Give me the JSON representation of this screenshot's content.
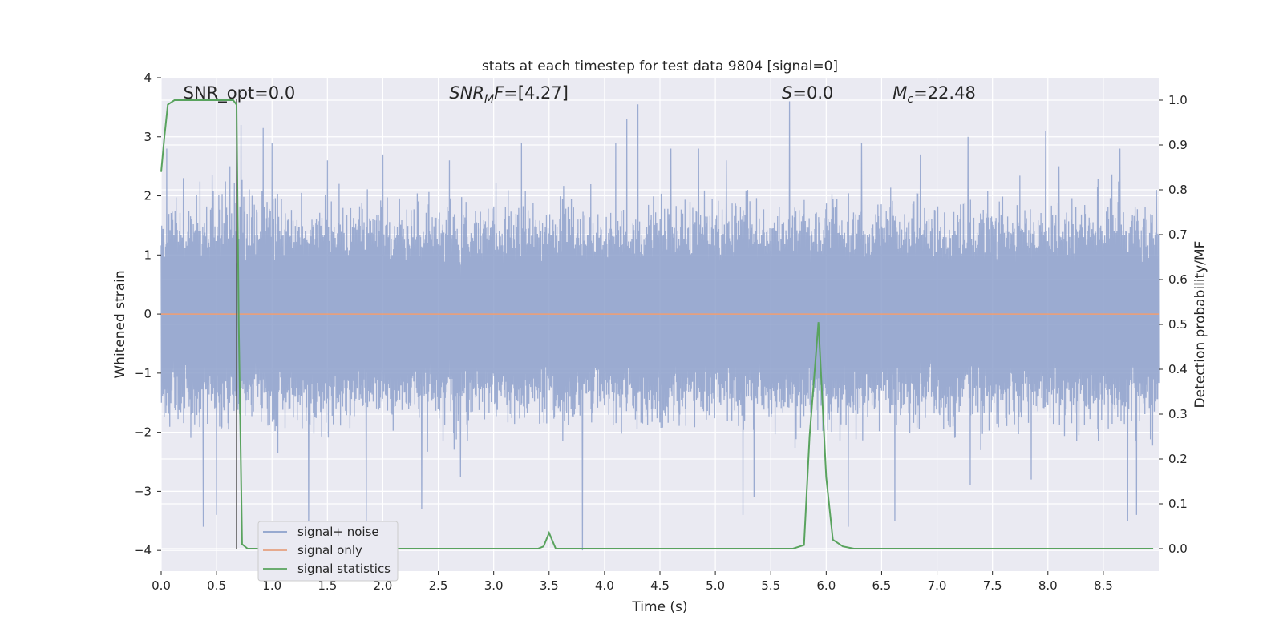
{
  "chart_data": {
    "type": "line",
    "title": "stats at each timestep for test data 9804 [signal=0]",
    "xlabel": "Time (s)",
    "ylabel": "Whitened strain",
    "y2label": "Detection probability/MF",
    "xlim": [
      0.0,
      9.0
    ],
    "ylim": [
      -4.35,
      4.0
    ],
    "y2lim": [
      -0.05,
      1.05
    ],
    "xticks": [
      "0.0",
      "0.5",
      "1.0",
      "1.5",
      "2.0",
      "2.5",
      "3.0",
      "3.5",
      "4.0",
      "4.5",
      "5.0",
      "5.5",
      "6.0",
      "6.5",
      "7.0",
      "7.5",
      "8.0",
      "8.5"
    ],
    "yticks": [
      "4",
      "3",
      "2",
      "1",
      "0",
      "−1",
      "−2",
      "−3",
      "−4"
    ],
    "y2ticks": [
      "1.0",
      "0.9",
      "0.8",
      "0.7",
      "0.6",
      "0.5",
      "0.4",
      "0.3",
      "0.2",
      "0.1",
      "0.0"
    ],
    "grid": true,
    "legend_position": "lower-left",
    "annotations": [
      {
        "text": "SNR_opt=0.0",
        "x": 0.2,
        "y": 3.65
      },
      {
        "text": "SNR_MF=[4.27]",
        "x": 2.6,
        "y": 3.65
      },
      {
        "text": "S=0.0",
        "x": 5.6,
        "y": 3.65
      },
      {
        "text": "M_c=22.48",
        "x": 6.6,
        "y": 3.65
      }
    ],
    "vline_x": 0.68,
    "series": [
      {
        "name": "signal+ noise",
        "color": "#8da0cb",
        "axis": "left",
        "envelope": {
          "typical_max": 1.6,
          "typical_min": -1.6
        },
        "spikes": [
          [
            0.05,
            2.8
          ],
          [
            0.2,
            2.3
          ],
          [
            0.38,
            -3.6
          ],
          [
            0.5,
            -3.4
          ],
          [
            0.62,
            2.5
          ],
          [
            0.72,
            3.2
          ],
          [
            0.92,
            3.15
          ],
          [
            1.0,
            2.9
          ],
          [
            1.33,
            -3.6
          ],
          [
            1.85,
            -3.55
          ],
          [
            1.5,
            2.6
          ],
          [
            2.35,
            -3.3
          ],
          [
            2.0,
            2.7
          ],
          [
            2.7,
            -2.75
          ],
          [
            2.6,
            2.6
          ],
          [
            3.25,
            2.9
          ],
          [
            3.8,
            -4.0
          ],
          [
            4.2,
            3.3
          ],
          [
            4.3,
            3.55
          ],
          [
            4.1,
            2.9
          ],
          [
            4.6,
            2.8
          ],
          [
            4.85,
            2.8
          ],
          [
            5.25,
            -3.4
          ],
          [
            5.35,
            -3.1
          ],
          [
            5.67,
            3.6
          ],
          [
            5.1,
            2.6
          ],
          [
            6.2,
            -3.6
          ],
          [
            6.32,
            2.9
          ],
          [
            6.62,
            -3.5
          ],
          [
            6.85,
            2.7
          ],
          [
            7.28,
            3.0
          ],
          [
            7.3,
            -2.9
          ],
          [
            7.85,
            -2.8
          ],
          [
            7.98,
            3.1
          ],
          [
            8.1,
            2.5
          ],
          [
            8.65,
            2.8
          ],
          [
            8.72,
            -3.5
          ],
          [
            8.8,
            -3.4
          ],
          [
            8.98,
            2.1
          ]
        ]
      },
      {
        "name": "signal only",
        "color": "#e5a07f",
        "axis": "left",
        "x": [
          0.0,
          9.0
        ],
        "y": [
          0.0,
          0.0
        ]
      },
      {
        "name": "signal statistics",
        "color": "#59a35e",
        "axis": "right",
        "x": [
          0.0,
          0.03,
          0.06,
          0.12,
          0.2,
          0.3,
          0.4,
          0.5,
          0.6,
          0.65,
          0.68,
          0.7,
          0.73,
          0.78,
          0.85,
          1.0,
          2.0,
          3.0,
          3.4,
          3.45,
          3.5,
          3.56,
          3.6,
          4.0,
          5.0,
          5.7,
          5.8,
          5.85,
          5.93,
          6.0,
          6.06,
          6.15,
          6.25,
          6.4,
          7.0,
          8.0,
          8.95
        ],
        "y": [
          0.84,
          0.92,
          0.99,
          1.0,
          1.0,
          1.0,
          1.0,
          1.0,
          1.0,
          1.0,
          0.99,
          0.5,
          0.01,
          0.0,
          0.0,
          0.0,
          0.0,
          0.0,
          0.0,
          0.005,
          0.035,
          0.0,
          0.0,
          0.0,
          0.0,
          0.0,
          0.008,
          0.25,
          0.505,
          0.16,
          0.02,
          0.005,
          0.0,
          0.0,
          0.0,
          0.0,
          0.0
        ]
      }
    ]
  }
}
